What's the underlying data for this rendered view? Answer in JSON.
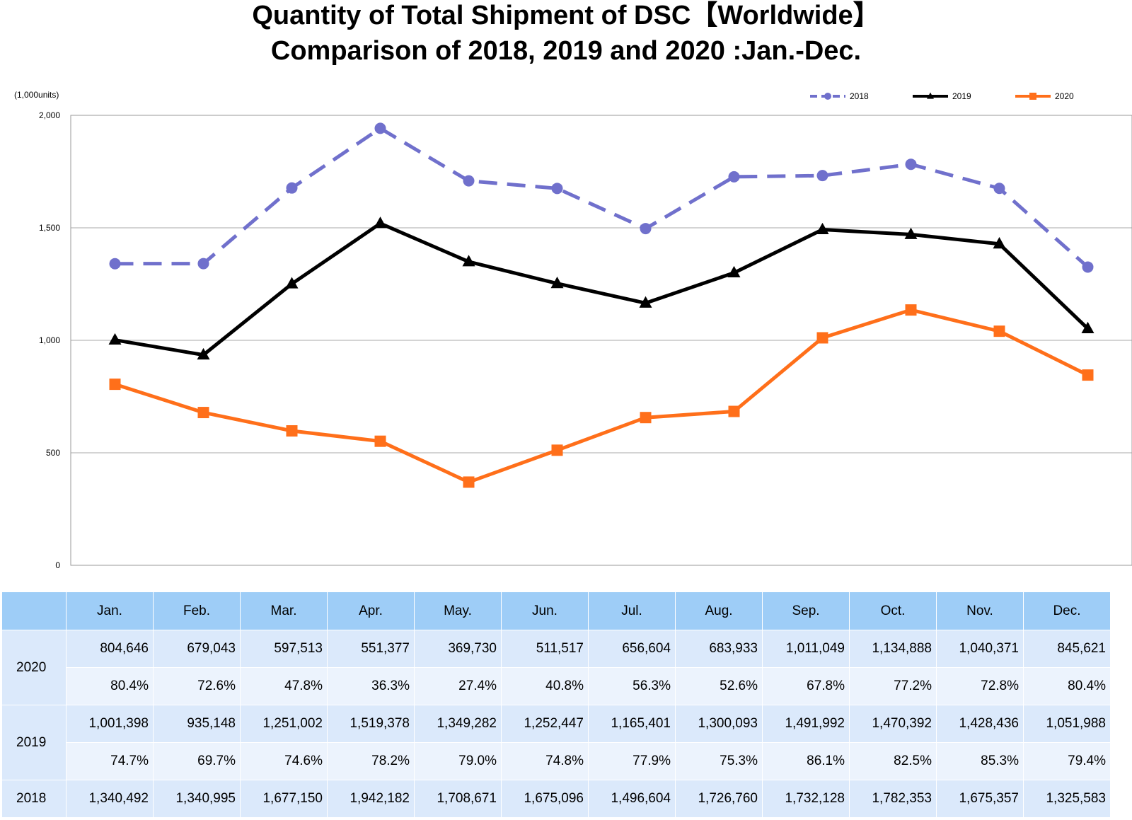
{
  "chart_data": {
    "type": "line",
    "title": "Quantity of Total Shipment of DSC【Worldwide】",
    "subtitle": "Comparison of 2018, 2019 and 2020 :Jan.-Dec.",
    "unit_label": "(1,000units)",
    "categories": [
      "Jan.",
      "Feb.",
      "Mar.",
      "Apr.",
      "May.",
      "Jun.",
      "Jul.",
      "Aug.",
      "Sep.",
      "Oct.",
      "Nov.",
      "Dec."
    ],
    "ylim": [
      0,
      2000
    ],
    "yticks": [
      0,
      500,
      1000,
      1500,
      2000
    ],
    "ytick_labels": [
      "0",
      "500",
      "1,000",
      "1,500",
      "2,000"
    ],
    "grid": true,
    "legend_position": "top-right",
    "series": [
      {
        "name": "2018",
        "color": "#7070cc",
        "marker": "circle",
        "dashed": true,
        "values": [
          1340.492,
          1340.995,
          1677.15,
          1942.182,
          1708.671,
          1675.096,
          1496.604,
          1726.76,
          1732.128,
          1782.353,
          1675.357,
          1325.583
        ]
      },
      {
        "name": "2019",
        "color": "#000000",
        "marker": "triangle",
        "dashed": false,
        "values": [
          1001.398,
          935.148,
          1251.002,
          1519.378,
          1349.282,
          1252.447,
          1165.401,
          1300.093,
          1491.992,
          1470.392,
          1428.436,
          1051.988
        ]
      },
      {
        "name": "2020",
        "color": "#ff6f1a",
        "marker": "square",
        "dashed": false,
        "values": [
          804.646,
          679.043,
          597.513,
          551.377,
          369.73,
          511.517,
          656.604,
          683.933,
          1011.049,
          1134.888,
          1040.371,
          845.621
        ]
      }
    ]
  },
  "table": {
    "header": [
      "",
      "Jan.",
      "Feb.",
      "Mar.",
      "Apr.",
      "May.",
      "Jun.",
      "Jul.",
      "Aug.",
      "Sep.",
      "Oct.",
      "Nov.",
      "Dec."
    ],
    "y2020": {
      "label": "2020",
      "qty": [
        "804,646",
        "679,043",
        "597,513",
        "551,377",
        "369,730",
        "511,517",
        "656,604",
        "683,933",
        "1,011,049",
        "1,134,888",
        "1,040,371",
        "845,621"
      ],
      "pct": [
        "80.4%",
        "72.6%",
        "47.8%",
        "36.3%",
        "27.4%",
        "40.8%",
        "56.3%",
        "52.6%",
        "67.8%",
        "77.2%",
        "72.8%",
        "80.4%"
      ]
    },
    "y2019": {
      "label": "2019",
      "qty": [
        "1,001,398",
        "935,148",
        "1,251,002",
        "1,519,378",
        "1,349,282",
        "1,252,447",
        "1,165,401",
        "1,300,093",
        "1,491,992",
        "1,470,392",
        "1,428,436",
        "1,051,988"
      ],
      "pct": [
        "74.7%",
        "69.7%",
        "74.6%",
        "78.2%",
        "79.0%",
        "74.8%",
        "77.9%",
        "75.3%",
        "86.1%",
        "82.5%",
        "85.3%",
        "79.4%"
      ]
    },
    "y2018": {
      "label": "2018",
      "qty": [
        "1,340,492",
        "1,340,995",
        "1,677,150",
        "1,942,182",
        "1,708,671",
        "1,675,096",
        "1,496,604",
        "1,726,760",
        "1,732,128",
        "1,782,353",
        "1,675,357",
        "1,325,583"
      ]
    }
  }
}
